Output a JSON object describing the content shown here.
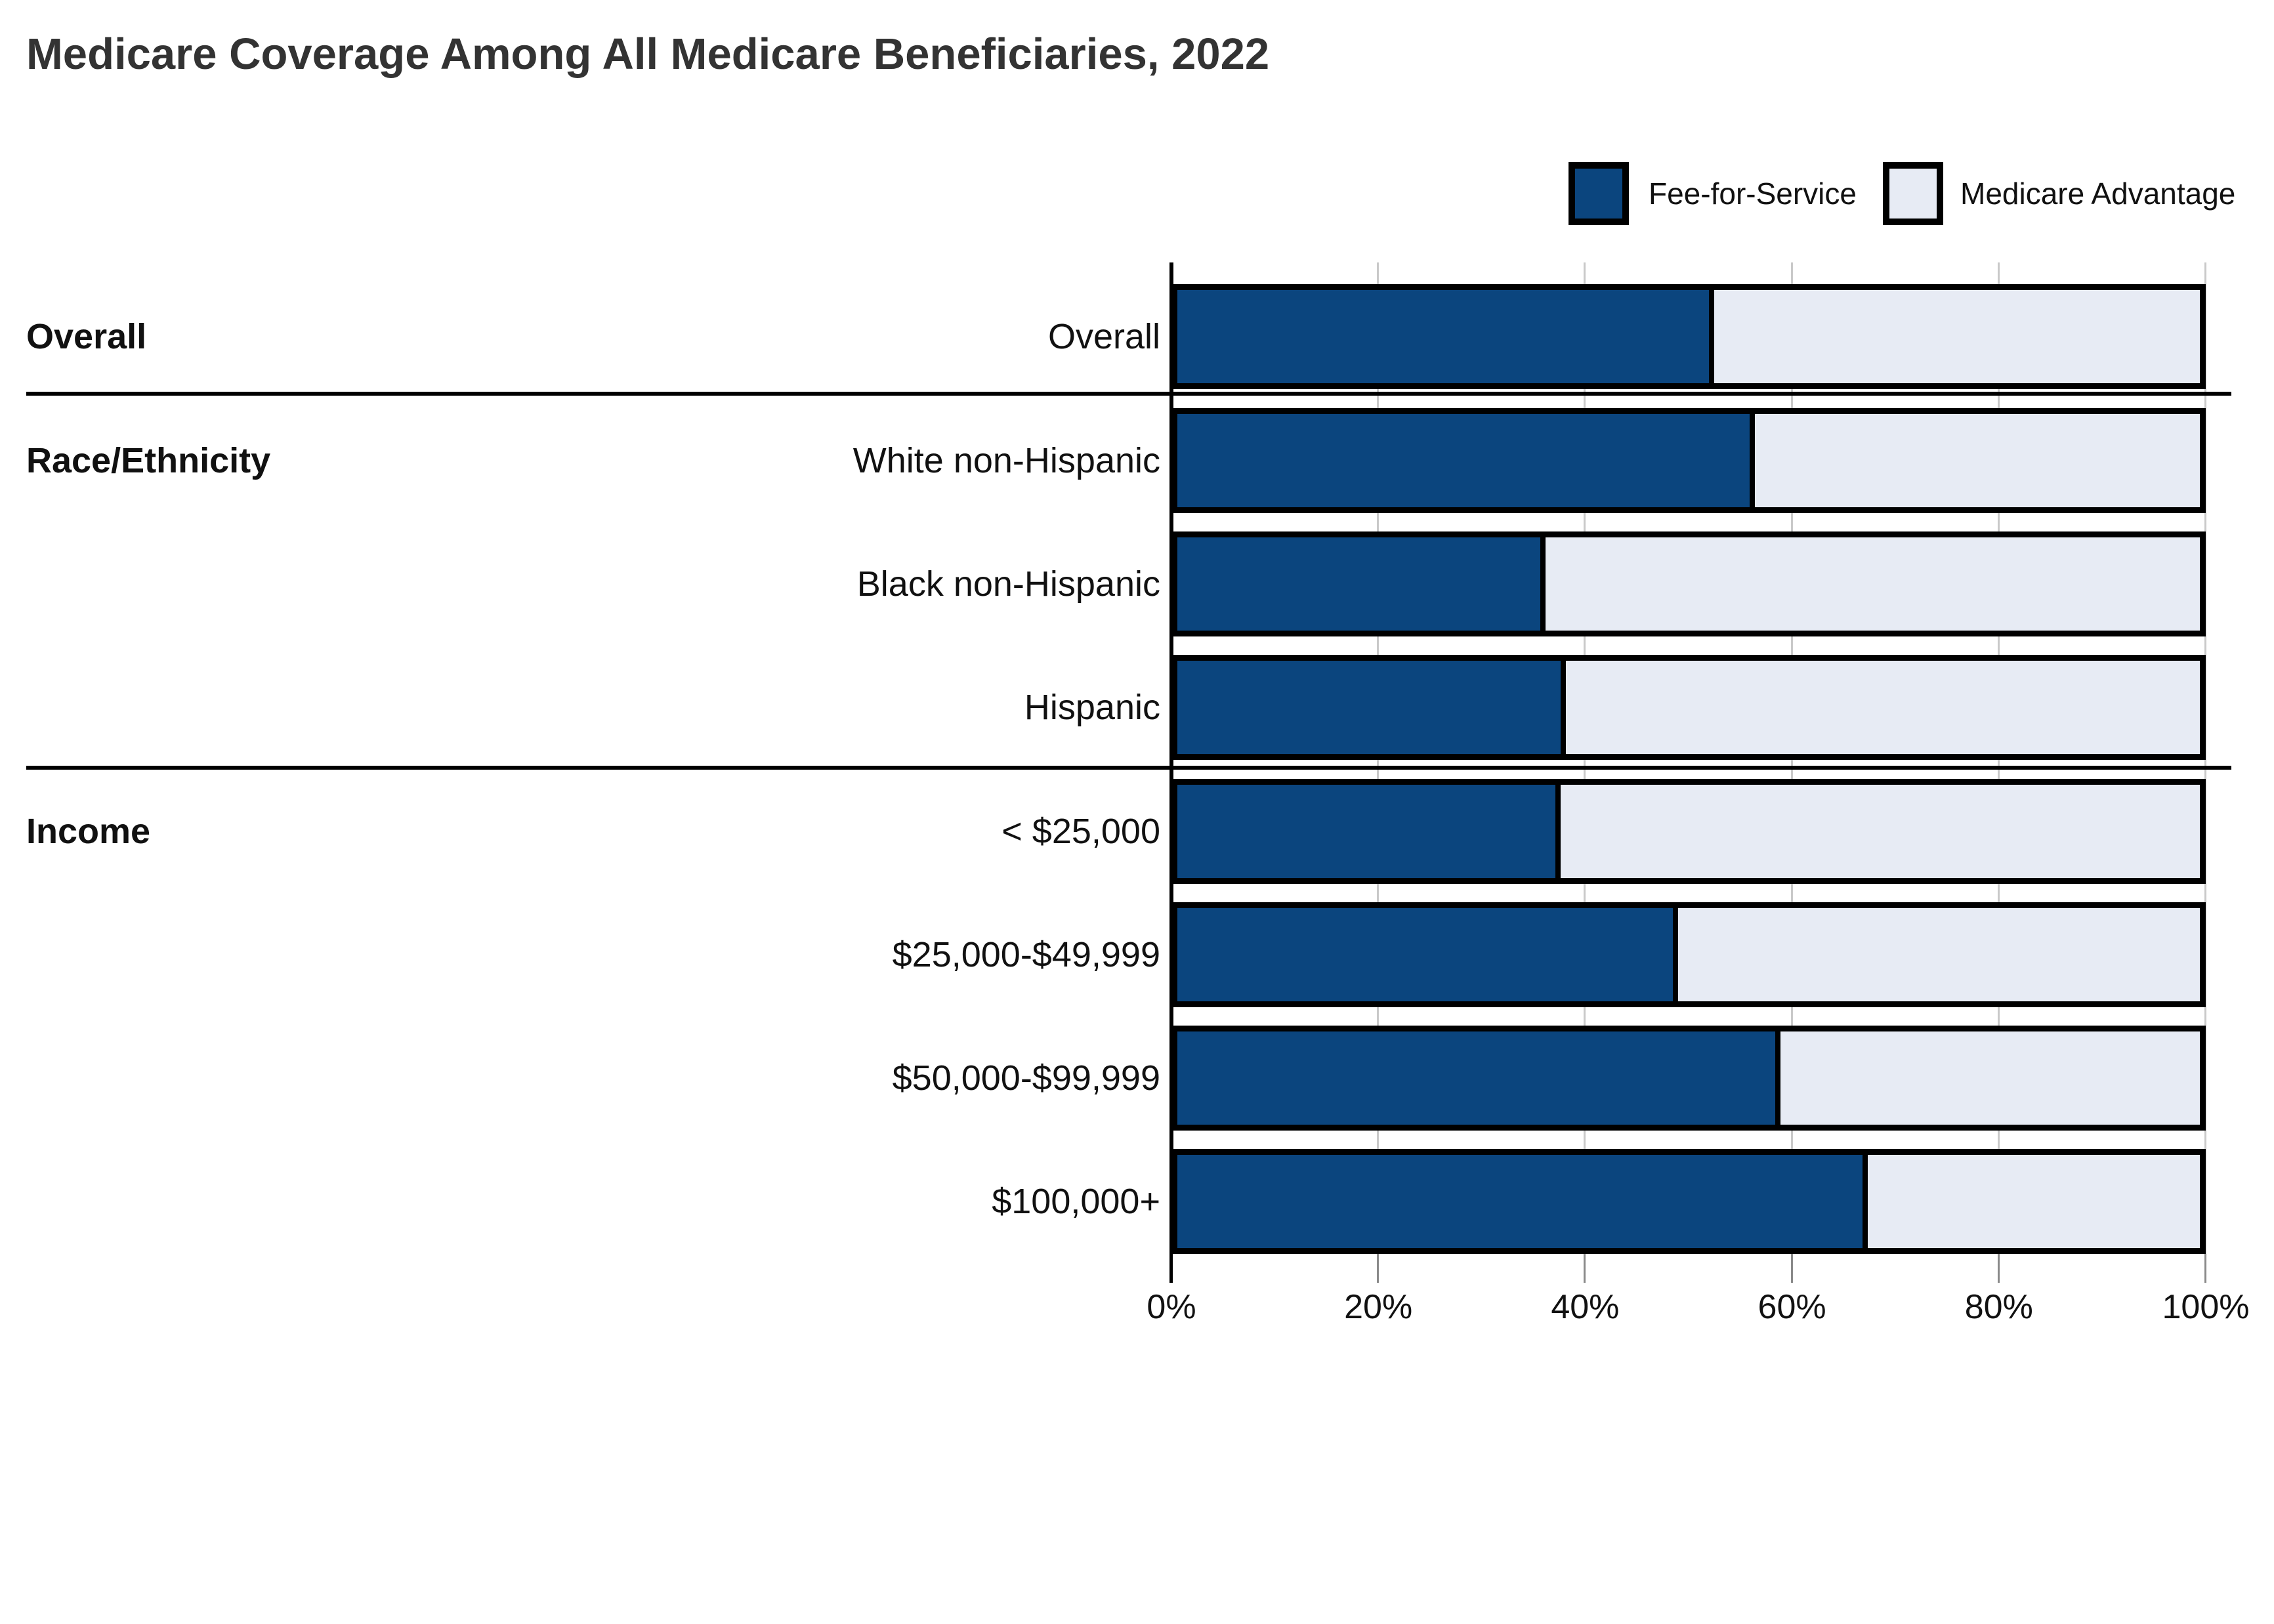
{
  "title": "Medicare Coverage Among All Medicare Beneficiaries, 2022",
  "legend": [
    {
      "label": "Fee-for-Service",
      "swatch_color": "#0b457e"
    },
    {
      "label": "Medicare Advantage",
      "swatch_color": "#e7ebf4"
    }
  ],
  "colors": {
    "fee_for_service": "#0b457e",
    "medicare_advantage": "#e7ebf4",
    "bar_border": "#000000",
    "gridline": "#c9c9c9",
    "axis_line": "#000000",
    "tick_minor": "#8a8a8a",
    "title_text": "#333333",
    "label_text": "#111111",
    "background": "#ffffff"
  },
  "chart_data": {
    "type": "bar",
    "orientation": "horizontal",
    "stacked": true,
    "unit": "percent",
    "title": "Medicare Coverage Among All Medicare Beneficiaries, 2022",
    "xlabel": "",
    "ylabel": "",
    "xlim": [
      0,
      100
    ],
    "grid": true,
    "legend_position": "top-right",
    "series": [
      "Fee-for-Service",
      "Medicare Advantage"
    ],
    "x_axis_ticks": [
      "0%",
      "20%",
      "40%",
      "60%",
      "80%",
      "100%"
    ],
    "groups": [
      {
        "label": "Overall",
        "rows": [
          {
            "label": "Overall",
            "fee_for_service": 52.5,
            "medicare_advantage": 47.5
          }
        ]
      },
      {
        "label": "Race/Ethnicity",
        "rows": [
          {
            "label": "White non-Hispanic",
            "fee_for_service": 56.5,
            "medicare_advantage": 43.5
          },
          {
            "label": "Black non-Hispanic",
            "fee_for_service": 36,
            "medicare_advantage": 64
          },
          {
            "label": "Hispanic",
            "fee_for_service": 38,
            "medicare_advantage": 62
          }
        ]
      },
      {
        "label": "Income",
        "rows": [
          {
            "label": "< $25,000",
            "fee_for_service": 37.5,
            "medicare_advantage": 62.5
          },
          {
            "label": "$25,000-$49,999",
            "fee_for_service": 49,
            "medicare_advantage": 51
          },
          {
            "label": "$50,000-$99,999",
            "fee_for_service": 59,
            "medicare_advantage": 41
          },
          {
            "label": "$100,000+",
            "fee_for_service": 67.5,
            "medicare_advantage": 32.5
          }
        ]
      }
    ]
  }
}
